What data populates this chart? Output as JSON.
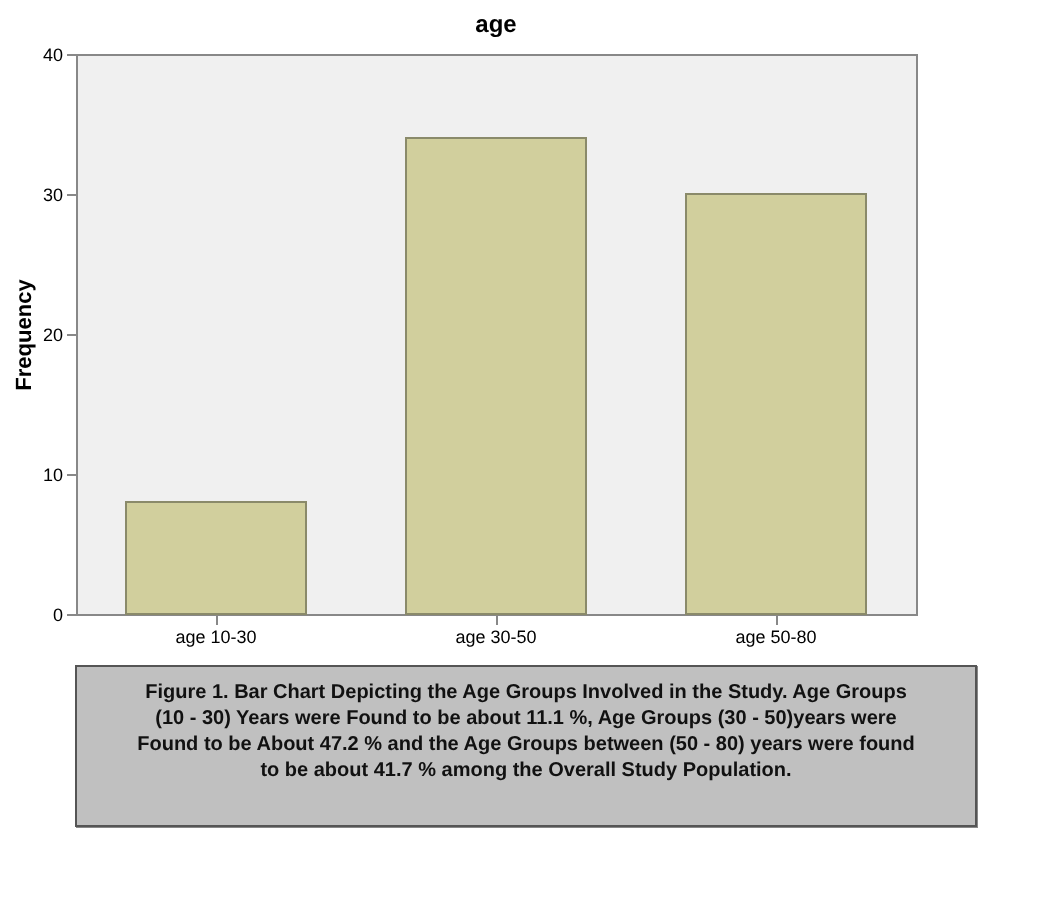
{
  "chart_data": {
    "type": "bar",
    "title": "age",
    "ylabel": "Frequency",
    "categories": [
      "age 10-30",
      "age 30-50",
      "age 50-80"
    ],
    "values": [
      8,
      34,
      30
    ],
    "color": "#d1cf9d",
    "ylim": [
      0,
      40
    ],
    "yticks": [
      0,
      10,
      20,
      30,
      40
    ],
    "grid": false,
    "annotations": [
      "Figure 1. Bar Chart Depicting the Age Groups Involved in the Study. Age Groups (10 - 30) Years were Found to be about 11.1 %, Age Groups (30 - 50)years were Found to be About 47.2 % and the Age Groups between (50 - 80) years were found to be about 41.7 % among the  Overall Study Population."
    ]
  }
}
